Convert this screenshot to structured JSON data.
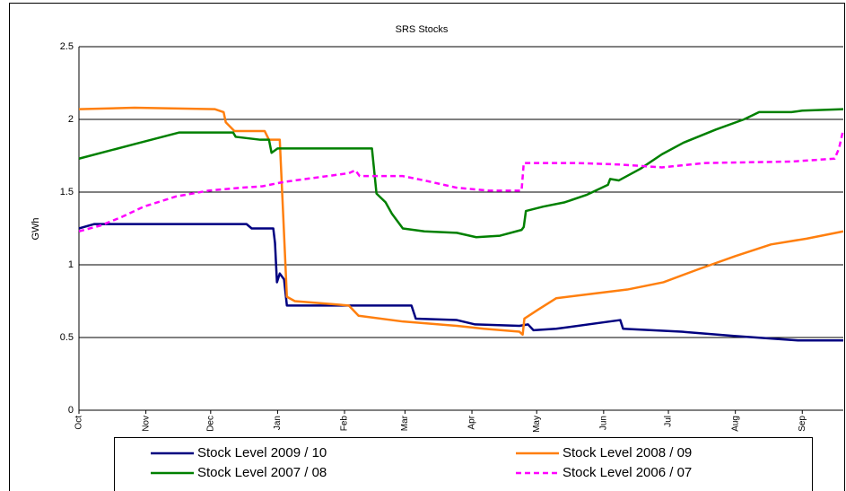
{
  "chart_data": {
    "type": "line",
    "title": "SRS Stocks",
    "y_label": "GWh",
    "xlim": [
      0,
      354
    ],
    "xticks": [
      {
        "value": 0,
        "label": "Oct"
      },
      {
        "value": 31,
        "label": "Nov"
      },
      {
        "value": 61,
        "label": "Dec"
      },
      {
        "value": 92,
        "label": "Jan"
      },
      {
        "value": 123,
        "label": "Feb"
      },
      {
        "value": 151,
        "label": "Mar"
      },
      {
        "value": 182,
        "label": "Apr"
      },
      {
        "value": 212,
        "label": "May"
      },
      {
        "value": 243,
        "label": "Jun"
      },
      {
        "value": 273,
        "label": "Jul"
      },
      {
        "value": 304,
        "label": "Aug"
      },
      {
        "value": 335,
        "label": "Sep"
      }
    ],
    "ylim": [
      0,
      2.5
    ],
    "yticks": [
      0,
      0.5,
      1,
      1.5,
      2,
      2.5
    ],
    "grid": true,
    "legend": "bottom",
    "series": [
      {
        "name": "Stock Level 2009 / 10",
        "color": "#000080",
        "dash": false,
        "x": [
          0,
          7,
          77.6,
          80,
          90,
          90.8,
          91.7,
          93,
          95,
          96.3,
          154,
          156,
          175,
          183.5,
          204,
          208,
          210.5,
          221,
          245.7,
          250.7,
          252,
          279,
          304,
          333,
          354
        ],
        "values": [
          1.25,
          1.28,
          1.28,
          1.25,
          1.25,
          1.15,
          0.88,
          0.94,
          0.9,
          0.72,
          0.72,
          0.63,
          0.62,
          0.59,
          0.58,
          0.59,
          0.55,
          0.56,
          0.61,
          0.62,
          0.56,
          0.54,
          0.51,
          0.48,
          0.48
        ]
      },
      {
        "name": "Stock Level 2008 / 09",
        "color": "#ff7f0e",
        "dash": false,
        "x": [
          0,
          25.7,
          63,
          67,
          68,
          72,
          86,
          88,
          93,
          94.6,
          96.3,
          100,
          117,
          125,
          129.5,
          150,
          175,
          187.6,
          204,
          205.5,
          206.3,
          212.5,
          221,
          237.4,
          254,
          270.7,
          287,
          304,
          320.5,
          337,
          354
        ],
        "values": [
          2.07,
          2.08,
          2.07,
          2.05,
          1.98,
          1.92,
          1.92,
          1.86,
          1.86,
          1.34,
          0.78,
          0.75,
          0.73,
          0.72,
          0.65,
          0.61,
          0.58,
          0.56,
          0.54,
          0.52,
          0.63,
          0.69,
          0.77,
          0.8,
          0.83,
          0.88,
          0.97,
          1.06,
          1.14,
          1.18,
          1.23
        ]
      },
      {
        "name": "Stock Level 2007 / 08",
        "color": "#008000",
        "dash": false,
        "x": [
          0,
          25.7,
          46.5,
          71.4,
          72.6,
          84,
          88,
          89.2,
          92,
          135.7,
          137.8,
          142,
          145,
          150,
          160,
          175,
          184,
          195,
          205,
          206,
          207,
          215,
          225,
          235,
          245,
          246,
          250,
          260,
          270,
          280,
          295,
          308,
          315,
          330,
          335,
          354
        ],
        "values": [
          1.73,
          1.83,
          1.91,
          1.91,
          1.88,
          1.86,
          1.86,
          1.77,
          1.8,
          1.8,
          1.49,
          1.43,
          1.35,
          1.25,
          1.23,
          1.22,
          1.19,
          1.2,
          1.24,
          1.26,
          1.37,
          1.4,
          1.43,
          1.48,
          1.55,
          1.59,
          1.58,
          1.66,
          1.76,
          1.84,
          1.93,
          2.0,
          2.05,
          2.05,
          2.06,
          2.07
        ]
      },
      {
        "name": "Stock Level 2006 / 07",
        "color": "#ff00ff",
        "dash": true,
        "x": [
          0,
          10,
          20,
          30,
          45,
          60,
          75,
          85,
          95,
          105,
          115,
          125,
          128,
          130,
          150,
          160,
          175,
          190,
          205,
          206,
          230,
          250,
          270,
          290,
          330,
          350,
          352,
          354
        ],
        "values": [
          1.23,
          1.27,
          1.33,
          1.4,
          1.47,
          1.51,
          1.53,
          1.54,
          1.57,
          1.59,
          1.61,
          1.63,
          1.65,
          1.61,
          1.61,
          1.58,
          1.53,
          1.51,
          1.51,
          1.7,
          1.7,
          1.69,
          1.67,
          1.7,
          1.71,
          1.73,
          1.8,
          1.93
        ]
      }
    ]
  }
}
